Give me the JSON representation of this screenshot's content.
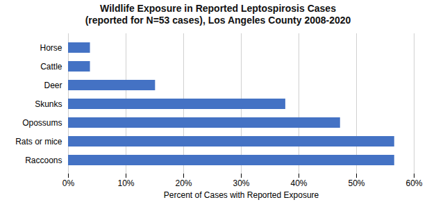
{
  "chart_data": {
    "type": "bar",
    "orientation": "horizontal",
    "title": "Wildlife Exposure in Reported Leptospirosis Cases",
    "subtitle": "(reported for N=53 cases), Los Angeles County 2008-2020",
    "categories": [
      "Raccoons",
      "Rats or mice",
      "Opossums",
      "Skunks",
      "Deer",
      "Cattle",
      "Horse"
    ],
    "values": [
      0.566,
      0.566,
      0.472,
      0.377,
      0.151,
      0.038,
      0.038
    ],
    "color": "#4472C4",
    "xlabel": "Percent of Cases with Reported Exposure",
    "xlim": [
      0,
      0.6
    ],
    "xticks": [
      {
        "value": 0.0,
        "label": "0%"
      },
      {
        "value": 0.1,
        "label": "10%"
      },
      {
        "value": 0.2,
        "label": "20%"
      },
      {
        "value": 0.3,
        "label": "30%"
      },
      {
        "value": 0.4,
        "label": "40%"
      },
      {
        "value": 0.5,
        "label": "50%"
      },
      {
        "value": 0.6,
        "label": "60%"
      }
    ],
    "grid": true
  }
}
